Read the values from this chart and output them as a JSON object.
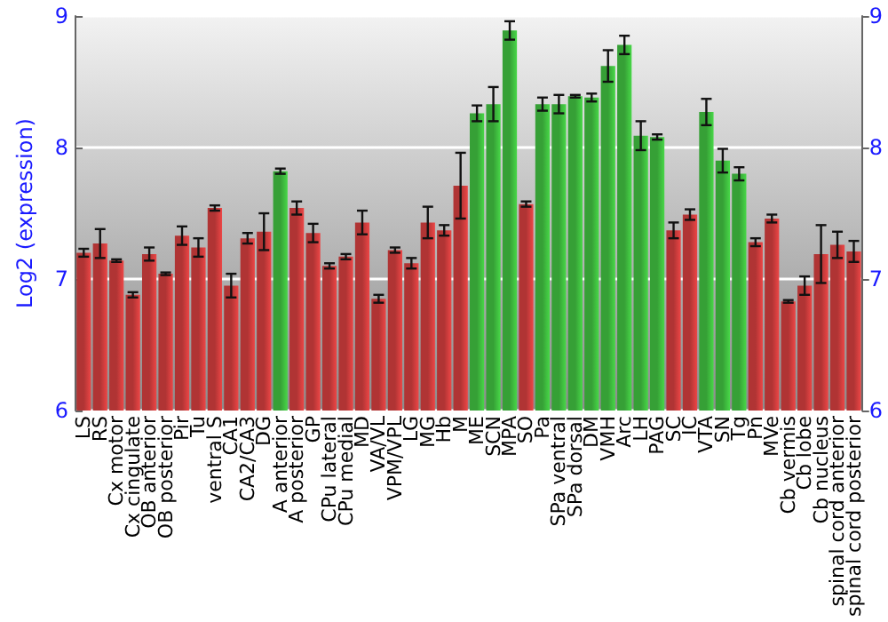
{
  "chart_data": {
    "type": "bar",
    "ylabel": "Log2 (expression)",
    "categories": [
      "LS",
      "RS",
      "Cx motor",
      "Cx cingulate",
      "OB anterior",
      "OB posterior",
      "Pir",
      "Tu",
      "ventral S",
      "CA1",
      "CA2/CA3",
      "DG",
      "A anterior",
      "A posterior",
      "GP",
      "CPu lateral",
      "CPu medial",
      "MD",
      "VA/VL",
      "VPM/VPL",
      "LG",
      "MG",
      "Hb",
      "M",
      "ME",
      "SCN",
      "MPA",
      "SO",
      "Pa",
      "SPa ventral",
      "SPa dorsal",
      "DM",
      "VMH",
      "Arc",
      "LH",
      "PAG",
      "SC",
      "IC",
      "VTA",
      "SN",
      "Tg",
      "Pn",
      "MVe",
      "Cb vermis",
      "Cb lobe",
      "Cb nucleus",
      "spinal cord anterior",
      "spinal cord posterior"
    ],
    "values": [
      7.2,
      7.27,
      7.14,
      6.88,
      7.19,
      7.04,
      7.33,
      7.24,
      7.54,
      6.95,
      7.31,
      7.36,
      7.82,
      7.54,
      7.35,
      7.1,
      7.17,
      7.43,
      6.85,
      7.22,
      7.12,
      7.43,
      7.37,
      7.71,
      8.26,
      8.33,
      8.89,
      7.57,
      8.33,
      8.33,
      8.39,
      8.38,
      8.62,
      8.78,
      8.09,
      8.08,
      7.37,
      7.49,
      8.27,
      7.9,
      7.8,
      7.28,
      7.46,
      6.83,
      6.95,
      7.19,
      7.26,
      7.21
    ],
    "errors": [
      0.03,
      0.11,
      0.01,
      0.02,
      0.05,
      0.01,
      0.07,
      0.07,
      0.02,
      0.09,
      0.04,
      0.14,
      0.02,
      0.05,
      0.07,
      0.02,
      0.02,
      0.09,
      0.03,
      0.02,
      0.04,
      0.12,
      0.04,
      0.25,
      0.06,
      0.13,
      0.07,
      0.02,
      0.05,
      0.07,
      0.01,
      0.03,
      0.12,
      0.07,
      0.11,
      0.02,
      0.06,
      0.04,
      0.1,
      0.09,
      0.05,
      0.03,
      0.03,
      0.01,
      0.07,
      0.22,
      0.1,
      0.08
    ],
    "colors": [
      "#b03434",
      "#b03434",
      "#b03434",
      "#b03434",
      "#b03434",
      "#b03434",
      "#b03434",
      "#b03434",
      "#b03434",
      "#b03434",
      "#b03434",
      "#b03434",
      "#36a036",
      "#b03434",
      "#b03434",
      "#b03434",
      "#b03434",
      "#b03434",
      "#b03434",
      "#b03434",
      "#b03434",
      "#b03434",
      "#b03434",
      "#b03434",
      "#36a036",
      "#36a036",
      "#36a036",
      "#b03434",
      "#36a036",
      "#36a036",
      "#36a036",
      "#36a036",
      "#36a036",
      "#36a036",
      "#36a036",
      "#36a036",
      "#b03434",
      "#b03434",
      "#36a036",
      "#36a036",
      "#36a036",
      "#b03434",
      "#b03434",
      "#b03434",
      "#b03434",
      "#b03434",
      "#b03434",
      "#b03434"
    ],
    "ylim": [
      6,
      9
    ],
    "yticks": [
      6,
      7,
      8,
      9
    ],
    "y2lim": [
      6,
      9
    ],
    "y2ticks": [
      6,
      7,
      8,
      9
    ],
    "grid": "y"
  }
}
